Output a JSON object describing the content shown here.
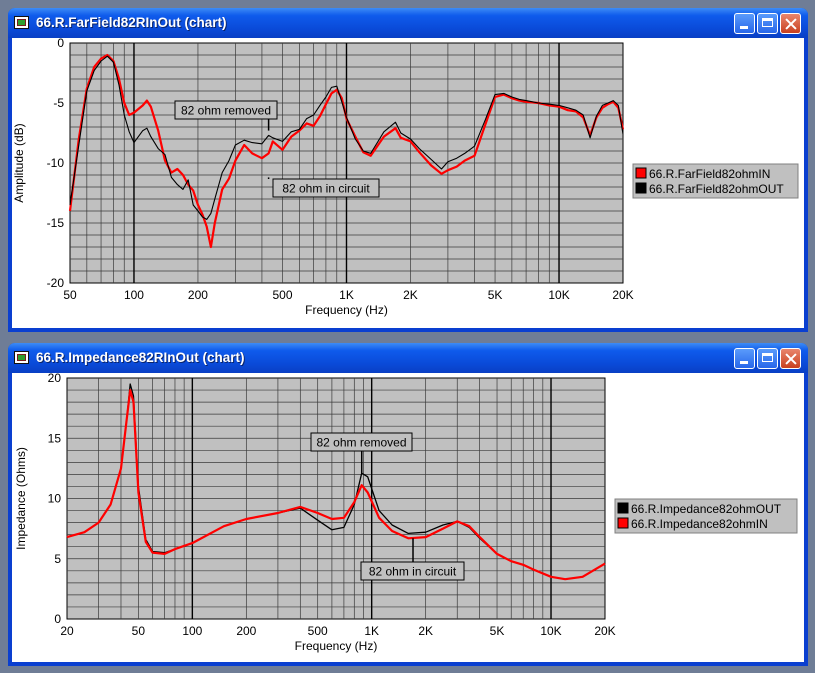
{
  "windows": [
    {
      "title": "66.R.FarField82RInOut (chart)"
    },
    {
      "title": "66.R.Impedance82RInOut (chart)"
    }
  ],
  "chart_data": [
    {
      "type": "line",
      "xlabel": "Frequency (Hz)",
      "ylabel": "Amplitude (dB)",
      "xscale": "log",
      "xlim": [
        50,
        20000
      ],
      "ylim": [
        -20,
        0
      ],
      "grid": true,
      "legend_position": "right",
      "x_tick_labels": [
        "50",
        "100",
        "200",
        "500",
        "1K",
        "2K",
        "5K",
        "10K",
        "20K"
      ],
      "y_tick_labels": [
        "0",
        "-5",
        "-10",
        "-15",
        "-20"
      ],
      "annotations": [
        {
          "text": "82 ohm removed",
          "x": 430,
          "y": -7.3
        },
        {
          "text": "82 ohm in circuit",
          "x": 430,
          "y": -11.2
        }
      ],
      "series": [
        {
          "name": "66.R.FarField82ohmIN",
          "color": "#ff0000",
          "x": [
            50,
            55,
            60,
            65,
            70,
            75,
            80,
            85,
            90,
            95,
            100,
            110,
            115,
            120,
            130,
            140,
            150,
            160,
            170,
            180,
            190,
            200,
            210,
            220,
            230,
            240,
            260,
            280,
            300,
            330,
            360,
            400,
            430,
            450,
            500,
            550,
            600,
            650,
            700,
            750,
            800,
            850,
            900,
            950,
            1000,
            1100,
            1200,
            1300,
            1500,
            1700,
            1800,
            2000,
            2200,
            2500,
            2800,
            3000,
            3300,
            3600,
            4000,
            4500,
            5000,
            5500,
            6000,
            6500,
            7000,
            8000,
            9000,
            10000,
            11000,
            12000,
            13000,
            14000,
            15000,
            16000,
            17000,
            18000,
            19000,
            20000
          ],
          "y": [
            -14,
            -8,
            -3.8,
            -2,
            -1.3,
            -1,
            -1.5,
            -3,
            -5,
            -6,
            -5.8,
            -5.2,
            -4.8,
            -5.3,
            -7.3,
            -9.8,
            -10.8,
            -10.5,
            -11,
            -11.8,
            -12.3,
            -13.5,
            -14.3,
            -15.3,
            -17,
            -15,
            -12.2,
            -11.3,
            -9.8,
            -8.5,
            -9.2,
            -9.6,
            -9.2,
            -8.2,
            -8.9,
            -7.8,
            -7.3,
            -6.7,
            -6.9,
            -6.1,
            -5.1,
            -4.2,
            -3.9,
            -4.6,
            -6.3,
            -7.8,
            -9.1,
            -9.4,
            -7.8,
            -7.1,
            -7.9,
            -8.2,
            -9.1,
            -10.2,
            -10.9,
            -10.6,
            -10.3,
            -9.8,
            -9.4,
            -6.8,
            -4.5,
            -4.3,
            -4.6,
            -4.8,
            -4.9,
            -5,
            -5.2,
            -5.3,
            -5.6,
            -5.7,
            -6.2,
            -7.7,
            -6.2,
            -5.4,
            -5.1,
            -4.9,
            -5.4,
            -7.2
          ]
        },
        {
          "name": "66.R.FarField82ohmOUT",
          "color": "#000000",
          "x": [
            50,
            55,
            60,
            65,
            70,
            75,
            80,
            85,
            90,
            95,
            100,
            110,
            115,
            120,
            130,
            140,
            150,
            160,
            170,
            180,
            190,
            200,
            210,
            220,
            230,
            240,
            260,
            280,
            300,
            330,
            360,
            400,
            430,
            450,
            500,
            550,
            600,
            650,
            700,
            750,
            800,
            850,
            900,
            950,
            1000,
            1100,
            1200,
            1300,
            1500,
            1700,
            1800,
            2000,
            2200,
            2500,
            2800,
            3000,
            3300,
            3600,
            4000,
            4500,
            5000,
            5500,
            6000,
            6500,
            7000,
            8000,
            9000,
            10000,
            11000,
            12000,
            13000,
            14000,
            15000,
            16000,
            17000,
            18000,
            19000,
            20000
          ],
          "y": [
            -13.5,
            -8.5,
            -4,
            -2.3,
            -1.5,
            -1.1,
            -1.6,
            -3.5,
            -6,
            -7.4,
            -8.3,
            -7.3,
            -7.1,
            -7.8,
            -8.8,
            -9.3,
            -11.2,
            -11.8,
            -12.2,
            -11.4,
            -13.5,
            -14,
            -14.5,
            -14.7,
            -14.2,
            -13,
            -10.8,
            -9.8,
            -8.5,
            -8.1,
            -8.3,
            -8.4,
            -7.7,
            -7.9,
            -8.2,
            -7.4,
            -7.2,
            -6.3,
            -6.0,
            -5.2,
            -4.5,
            -3.7,
            -3.6,
            -4.9,
            -6.2,
            -8.0,
            -9.0,
            -9.2,
            -7.4,
            -6.6,
            -7.5,
            -8.0,
            -8.8,
            -9.7,
            -10.5,
            -9.9,
            -9.6,
            -9.2,
            -8.6,
            -6.4,
            -4.3,
            -4.2,
            -4.5,
            -4.7,
            -4.8,
            -5,
            -5.1,
            -5.2,
            -5.4,
            -5.6,
            -6,
            -7.9,
            -6.1,
            -5.2,
            -5,
            -4.8,
            -5.2,
            -7.6
          ]
        }
      ]
    },
    {
      "type": "line",
      "xlabel": "Frequency (Hz)",
      "ylabel": "Impedance (Ohms)",
      "xscale": "log",
      "xlim": [
        20,
        20000
      ],
      "ylim": [
        0,
        20
      ],
      "grid": true,
      "legend_position": "right",
      "x_tick_labels": [
        "20",
        "50",
        "100",
        "200",
        "500",
        "1K",
        "2K",
        "5K",
        "10K",
        "20K"
      ],
      "y_tick_labels": [
        "20",
        "15",
        "10",
        "5",
        "0"
      ],
      "annotations": [
        {
          "text": "82 ohm removed",
          "x": 880,
          "y": 12.1
        },
        {
          "text": "82 ohm in circuit",
          "x": 1700,
          "y": 6.7
        }
      ],
      "series": [
        {
          "name": "66.R.Impedance82ohmOUT",
          "color": "#000000",
          "x": [
            20,
            25,
            30,
            35,
            40,
            43,
            45,
            47,
            50,
            55,
            60,
            70,
            80,
            100,
            150,
            200,
            300,
            400,
            500,
            600,
            700,
            800,
            880,
            950,
            1100,
            1300,
            1600,
            2000,
            2500,
            3000,
            3500,
            4000,
            5000,
            6000,
            7000,
            8000,
            10000,
            12000,
            15000,
            20000
          ],
          "y": [
            6.8,
            7.2,
            8,
            9.5,
            12.5,
            16.5,
            19.5,
            18.5,
            11,
            6.6,
            5.6,
            5.5,
            5.8,
            6.3,
            7.7,
            8.3,
            8.8,
            9.2,
            8.2,
            7.4,
            7.6,
            9.5,
            12.1,
            11.8,
            9,
            7.8,
            7.1,
            7.2,
            7.8,
            8.1,
            7.6,
            6.7,
            5.4,
            4.8,
            4.5,
            4.1,
            3.5,
            3.3,
            3.5,
            4.6
          ]
        },
        {
          "name": "66.R.Impedance82ohmIN",
          "color": "#ff0000",
          "x": [
            20,
            25,
            30,
            35,
            40,
            43,
            45,
            47,
            50,
            55,
            60,
            70,
            80,
            100,
            150,
            200,
            300,
            400,
            500,
            600,
            700,
            800,
            880,
            950,
            1100,
            1300,
            1600,
            2000,
            2500,
            3000,
            3500,
            4000,
            5000,
            6000,
            7000,
            8000,
            10000,
            12000,
            15000,
            20000
          ],
          "y": [
            6.8,
            7.2,
            8,
            9.5,
            12.5,
            16.5,
            19,
            18,
            10.5,
            6.4,
            5.5,
            5.4,
            5.8,
            6.3,
            7.7,
            8.3,
            8.8,
            9.3,
            8.8,
            8.3,
            8.4,
            9.7,
            11.1,
            10.5,
            8.4,
            7.3,
            6.7,
            6.8,
            7.5,
            8.1,
            7.7,
            6.8,
            5.4,
            4.8,
            4.5,
            4.1,
            3.5,
            3.3,
            3.5,
            4.6
          ]
        }
      ]
    }
  ]
}
